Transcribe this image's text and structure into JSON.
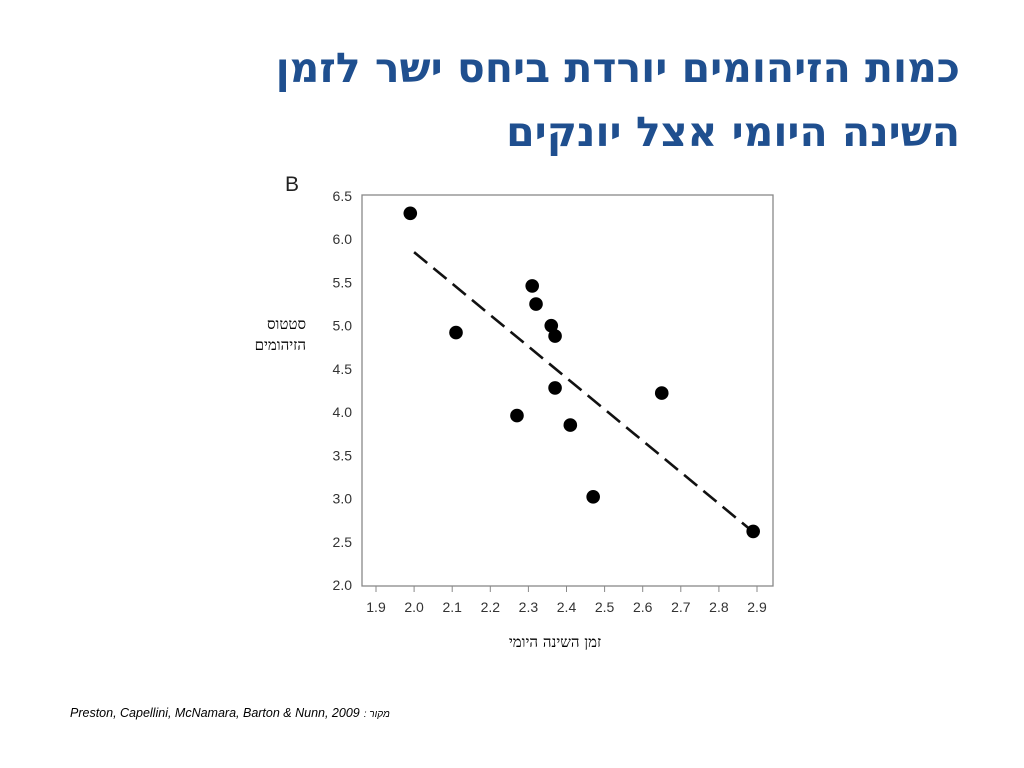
{
  "slide": {
    "title_line1": "כמות הזיהומים יורדת ביחס ישר לזמן",
    "title_line2": "השינה היומי אצל יונקים",
    "source_citation": "Preston, Capellini, McNamara, Barton & Nunn, 2009",
    "source_label": ": מקור",
    "title_color": "#1f4f8f"
  },
  "chart_data": {
    "type": "scatter",
    "panel_label": "B",
    "xlabel": "זמן השינה היומי",
    "ylabel_line1": "סטטוס",
    "ylabel_line2": "הזיהומים",
    "xlim": [
      1.9,
      2.9
    ],
    "ylim": [
      2.0,
      6.5
    ],
    "xticks": [
      "1.9",
      "2.0",
      "2.1",
      "2.2",
      "2.3",
      "2.4",
      "2.5",
      "2.6",
      "2.7",
      "2.8",
      "2.9"
    ],
    "yticks": [
      "2.0",
      "2.5",
      "3.0",
      "3.5",
      "4.0",
      "4.5",
      "5.0",
      "5.5",
      "6.0",
      "6.5"
    ],
    "points": [
      {
        "x": 1.99,
        "y": 6.3
      },
      {
        "x": 2.11,
        "y": 4.92
      },
      {
        "x": 2.27,
        "y": 3.96
      },
      {
        "x": 2.31,
        "y": 5.46
      },
      {
        "x": 2.32,
        "y": 5.25
      },
      {
        "x": 2.36,
        "y": 5.0
      },
      {
        "x": 2.37,
        "y": 4.88
      },
      {
        "x": 2.37,
        "y": 4.28
      },
      {
        "x": 2.41,
        "y": 3.85
      },
      {
        "x": 2.47,
        "y": 3.02
      },
      {
        "x": 2.65,
        "y": 4.22
      },
      {
        "x": 2.89,
        "y": 2.62
      }
    ],
    "trendline": {
      "style": "dashed",
      "x": [
        2.0,
        2.88
      ],
      "y": [
        5.85,
        2.65
      ]
    },
    "grid": false,
    "point_color": "#000000"
  }
}
